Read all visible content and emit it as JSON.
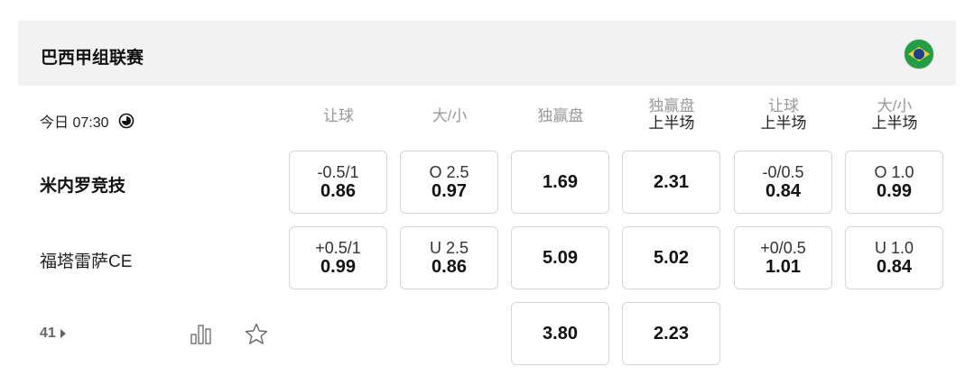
{
  "league": {
    "name": "巴西甲组联赛",
    "flag_icon": "brazil-flag-icon"
  },
  "match": {
    "time": "今日 07:30",
    "home": "米内罗竞技",
    "away": "福塔雷萨CE",
    "more_count": "41"
  },
  "columns": [
    {
      "line1": "让球",
      "line2": ""
    },
    {
      "line1": "大/小",
      "line2": ""
    },
    {
      "line1": "独赢盘",
      "line2": ""
    },
    {
      "line1": "独赢盘",
      "line2": "上半场"
    },
    {
      "line1": "让球",
      "line2": "上半场"
    },
    {
      "line1": "大/小",
      "line2": "上半场"
    }
  ],
  "rows": [
    [
      {
        "line": "-0.5/1",
        "odds": "0.86"
      },
      {
        "line": "O 2.5",
        "odds": "0.97"
      },
      {
        "line": "",
        "odds": "1.69"
      },
      {
        "line": "",
        "odds": "2.31"
      },
      {
        "line": "-0/0.5",
        "odds": "0.84"
      },
      {
        "line": "O 1.0",
        "odds": "0.99"
      }
    ],
    [
      {
        "line": "+0.5/1",
        "odds": "0.99"
      },
      {
        "line": "U 2.5",
        "odds": "0.86"
      },
      {
        "line": "",
        "odds": "5.09"
      },
      {
        "line": "",
        "odds": "5.02"
      },
      {
        "line": "+0/0.5",
        "odds": "1.01"
      },
      {
        "line": "U 1.0",
        "odds": "0.84"
      }
    ],
    [
      null,
      null,
      {
        "line": "",
        "odds": "3.80"
      },
      {
        "line": "",
        "odds": "2.23"
      },
      null,
      null
    ]
  ]
}
